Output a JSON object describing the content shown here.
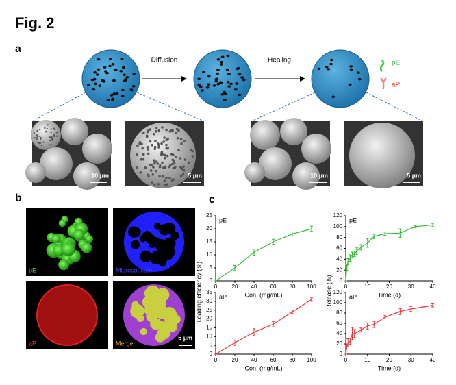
{
  "figure_label": "Fig. 2",
  "panel_labels": [
    "a",
    "b",
    "c"
  ],
  "diagram": {
    "arrows": [
      "Diffusion",
      "Healing"
    ],
    "legend": [
      "pE",
      "aP"
    ]
  },
  "sem_scale_bars": [
    "10 µm",
    "5 µm",
    "10 µm",
    "5 µm"
  ],
  "fluorescence": {
    "labels": [
      "pE",
      "Microcapsule",
      "aP",
      "Merge"
    ],
    "scale_bar": "5 µm"
  },
  "chart_data": [
    {
      "type": "line",
      "annotation": "pE",
      "xlabel": "Con. (mg/mL)",
      "ylabel": "Loading efficiency (%)",
      "xlim": [
        0,
        100
      ],
      "xticks": [
        0,
        20,
        40,
        60,
        80,
        100
      ],
      "ylim": [
        0,
        25
      ],
      "yticks": [
        0,
        5,
        10,
        15,
        20,
        25
      ],
      "x": [
        0,
        20,
        40,
        60,
        80,
        100
      ],
      "series": [
        {
          "color": "#33bb33",
          "values": [
            0,
            5,
            11,
            15,
            18,
            20
          ],
          "errors": [
            0,
            1,
            1.2,
            1,
            0.8,
            1
          ]
        }
      ]
    },
    {
      "type": "line",
      "annotation": "pE",
      "xlabel": "Time (d)",
      "ylabel": "Release (%)",
      "xlim": [
        0,
        40
      ],
      "xticks": [
        0,
        10,
        20,
        30,
        40
      ],
      "ylim": [
        0,
        120
      ],
      "yticks": [
        0,
        20,
        40,
        60,
        80,
        100,
        120
      ],
      "x": [
        0,
        0.5,
        1,
        2,
        3,
        4,
        5,
        7,
        10,
        13,
        18,
        25,
        32,
        40
      ],
      "series": [
        {
          "color": "#33bb33",
          "values": [
            0,
            25,
            35,
            42,
            48,
            50,
            55,
            62,
            70,
            82,
            87,
            88,
            100,
            103
          ],
          "errors": [
            0,
            5,
            6,
            6,
            5,
            5,
            6,
            5,
            8,
            4,
            3,
            8,
            2,
            3
          ]
        }
      ]
    },
    {
      "type": "line",
      "annotation": "aP",
      "xlabel": "Con. (mg/mL)",
      "xlim": [
        0,
        100
      ],
      "xticks": [
        0,
        20,
        40,
        60,
        80,
        100
      ],
      "ylim": [
        0,
        35
      ],
      "yticks": [
        0,
        5,
        10,
        15,
        20,
        25,
        30,
        35
      ],
      "x": [
        0,
        20,
        40,
        60,
        80,
        100
      ],
      "series": [
        {
          "color": "#ee3333",
          "values": [
            0,
            6.5,
            12.5,
            17,
            24,
            31
          ],
          "errors": [
            0,
            1.5,
            2,
            1.5,
            1,
            1
          ]
        }
      ]
    },
    {
      "type": "line",
      "annotation": "aP",
      "xlabel": "Time (d)",
      "xlim": [
        0,
        40
      ],
      "xticks": [
        0,
        10,
        20,
        30,
        40
      ],
      "ylim": [
        0,
        120
      ],
      "yticks": [
        0,
        20,
        40,
        60,
        80,
        100,
        120
      ],
      "x": [
        0,
        0.5,
        1,
        2,
        3,
        4,
        7,
        10,
        13,
        18,
        25,
        30,
        40
      ],
      "series": [
        {
          "color": "#ee3333",
          "values": [
            0,
            15,
            22,
            25,
            40,
            40,
            47,
            55,
            58,
            72,
            83,
            88,
            95
          ],
          "errors": [
            0,
            5,
            8,
            6,
            12,
            8,
            4,
            6,
            6,
            3,
            6,
            5,
            3
          ]
        }
      ]
    }
  ]
}
